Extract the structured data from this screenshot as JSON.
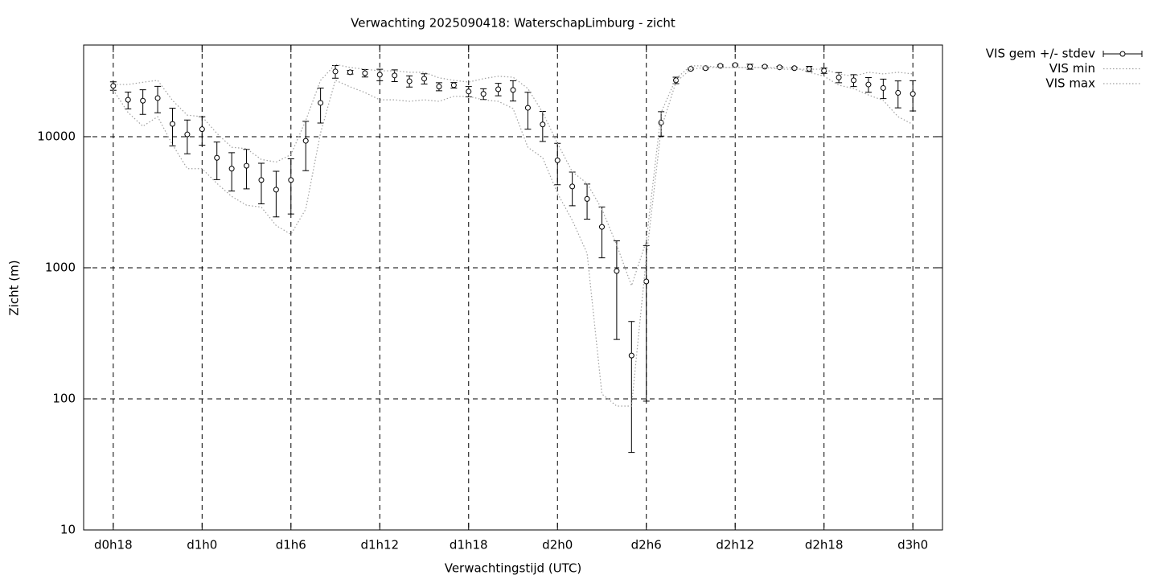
{
  "chart_data": {
    "type": "errorbar",
    "title": "Verwachting 2025090418: WaterschapLimburg - zicht",
    "x_label": "Verwachtingstijd (UTC)",
    "y_label": "Zicht (m)",
    "log_y": true,
    "grid": true,
    "legend": "outside-top-right",
    "xlim": [
      16,
      74
    ],
    "xticks": [
      {
        "value": 18,
        "label": "d0h18"
      },
      {
        "value": 24,
        "label": "d1h0"
      },
      {
        "value": 30,
        "label": "d1h6"
      },
      {
        "value": 36,
        "label": "d1h12"
      },
      {
        "value": 42,
        "label": "d1h18"
      },
      {
        "value": 48,
        "label": "d2h0"
      },
      {
        "value": 54,
        "label": "d2h6"
      },
      {
        "value": 60,
        "label": "d2h12"
      },
      {
        "value": 66,
        "label": "d2h18"
      },
      {
        "value": 72,
        "label": "d3h0"
      }
    ],
    "ylim": [
      10,
      50000
    ],
    "yticks": [
      10,
      100,
      1000,
      10000
    ],
    "x": [
      18,
      19,
      20,
      21,
      22,
      23,
      24,
      25,
      26,
      27,
      28,
      29,
      30,
      31,
      32,
      33,
      34,
      35,
      36,
      37,
      38,
      39,
      40,
      41,
      42,
      43,
      44,
      45,
      46,
      47,
      48,
      49,
      50,
      51,
      52,
      53,
      54,
      55,
      56,
      57,
      58,
      59,
      60,
      61,
      62,
      63,
      64,
      65,
      66,
      67,
      68,
      69,
      70,
      71,
      72
    ],
    "series": [
      {
        "name": "VIS gem +/- stdev",
        "style": "points-errorbars",
        "color": "#000000",
        "values": [
          24400,
          19100,
          18800,
          19700,
          12500,
          10400,
          11400,
          6900,
          5700,
          6000,
          4670,
          3940,
          4670,
          9300,
          18100,
          31400,
          31000,
          30500,
          29700,
          29300,
          26500,
          27700,
          24100,
          24700,
          22100,
          21200,
          23000,
          22700,
          16600,
          12400,
          6600,
          4170,
          3350,
          2050,
          944,
          214,
          786,
          12800,
          26900,
          32900,
          33300,
          34700,
          35200,
          34200,
          34200,
          33800,
          33300,
          32900,
          31900,
          28300,
          26900,
          25000,
          23500,
          21600,
          21200
        ],
        "errors": [
          1800,
          2800,
          4000,
          4500,
          4000,
          3000,
          2800,
          2200,
          1850,
          2000,
          1600,
          1500,
          2100,
          3800,
          5400,
          3500,
          1000,
          2000,
          3000,
          3000,
          2600,
          2500,
          1700,
          1200,
          2000,
          2000,
          2500,
          4000,
          5200,
          3200,
          2300,
          1200,
          1000,
          860,
          660,
          175,
          690,
          2700,
          1500,
          500,
          500,
          500,
          500,
          1500,
          500,
          500,
          500,
          1500,
          1500,
          2500,
          2800,
          3200,
          4000,
          5000,
          5500
        ]
      },
      {
        "name": "VIS min",
        "style": "dotted",
        "color": "#a0a0a0",
        "values": [
          22700,
          15300,
          12000,
          14200,
          8700,
          5700,
          5700,
          4400,
          3500,
          3000,
          2900,
          2100,
          1800,
          2800,
          10700,
          26900,
          24000,
          21700,
          19100,
          19100,
          18600,
          19100,
          18600,
          20300,
          20300,
          19100,
          18600,
          16400,
          8300,
          6900,
          3700,
          2300,
          1290,
          109,
          88,
          88,
          1200,
          11500,
          26100,
          32700,
          33700,
          33700,
          33700,
          33700,
          33700,
          33700,
          33700,
          31000,
          28900,
          24700,
          23300,
          20800,
          18900,
          14200,
          12400
        ]
      },
      {
        "name": "VIS max",
        "style": "dotted",
        "color": "#a0a0a0",
        "values": [
          25000,
          25000,
          26000,
          26900,
          18900,
          14600,
          14200,
          10600,
          8300,
          8100,
          6700,
          6400,
          7300,
          13300,
          26900,
          35600,
          33700,
          32700,
          31800,
          31800,
          31000,
          31000,
          28100,
          26900,
          26100,
          27700,
          28900,
          28400,
          23300,
          15300,
          8900,
          5400,
          4400,
          2800,
          1490,
          730,
          1600,
          15300,
          27700,
          34700,
          34700,
          33700,
          33700,
          33700,
          33700,
          32700,
          32700,
          32700,
          32700,
          30100,
          28900,
          31000,
          30100,
          31000,
          30100
        ]
      }
    ]
  }
}
